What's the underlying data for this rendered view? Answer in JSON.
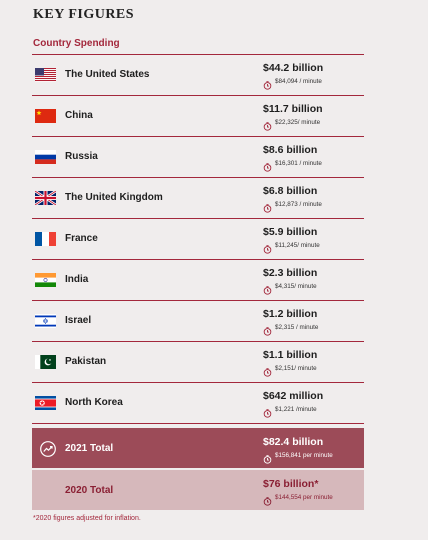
{
  "header": {
    "title": "KEY FIGURES",
    "subtitle": "Country Spending"
  },
  "table": {
    "rows": [
      {
        "country": "The United States",
        "amount": "$44.2 billion",
        "per_minute": "$84,094 / minute"
      },
      {
        "country": "China",
        "amount": "$11.7 billion",
        "per_minute": "$22,325/ minute"
      },
      {
        "country": "Russia",
        "amount": "$8.6 billion",
        "per_minute": "$16,301 / minute"
      },
      {
        "country": "The United Kingdom",
        "amount": "$6.8 billion",
        "per_minute": "$12,873 / minute"
      },
      {
        "country": "France",
        "amount": "$5.9 billion",
        "per_minute": "$11,245/ minute"
      },
      {
        "country": "India",
        "amount": "$2.3 billion",
        "per_minute": "$4,315/ minute"
      },
      {
        "country": "Israel",
        "amount": "$1.2 billion",
        "per_minute": "$2,315 / minute"
      },
      {
        "country": "Pakistan",
        "amount": "$1.1 billion",
        "per_minute": "$2,151/ minute"
      },
      {
        "country": "North Korea",
        "amount": "$642 million",
        "per_minute": "$1,221 /minute"
      }
    ],
    "totals": [
      {
        "label": "2021 Total",
        "amount": "$82.4 billion",
        "per_minute": "$156,841 per minute"
      },
      {
        "label": "2020 Total",
        "amount": "$76 billion*",
        "per_minute": "$144,554 per minute"
      }
    ]
  },
  "footnote": "*2020 figures adjusted for inflation."
}
